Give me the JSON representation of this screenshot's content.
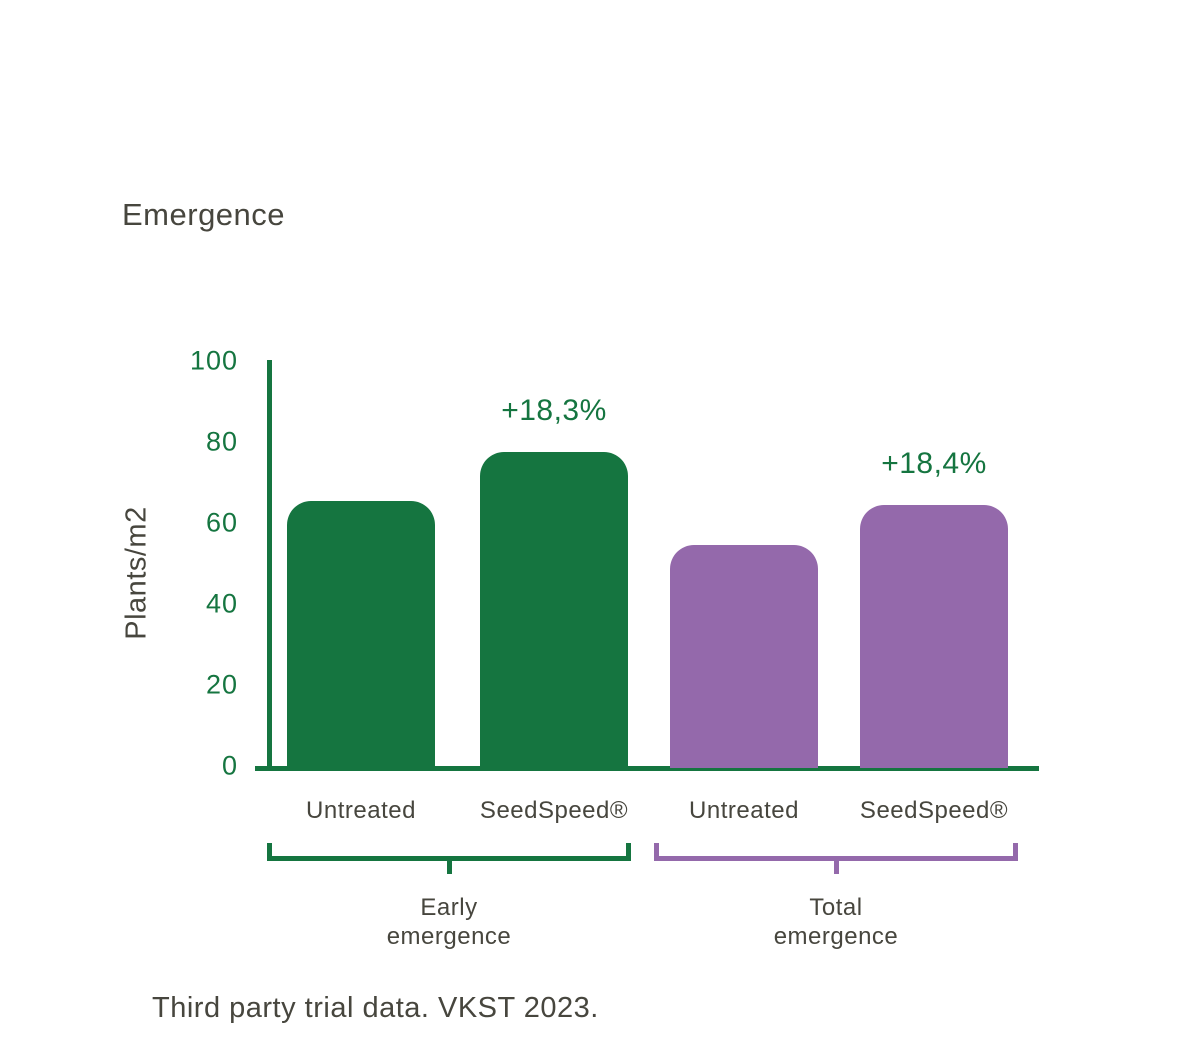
{
  "chart_data": {
    "type": "bar",
    "title": "Emergence",
    "ylabel": "Plants/m2",
    "ylim": [
      0,
      100
    ],
    "yticks": [
      0,
      20,
      40,
      60,
      80,
      100
    ],
    "grid": false,
    "legend": false,
    "categories": [
      "Untreated",
      "SeedSpeed®",
      "Untreated",
      "SeedSpeed®"
    ],
    "values": [
      66,
      78,
      55,
      65
    ],
    "bar_colors": [
      "#157540",
      "#157540",
      "#9469ab",
      "#9469ab"
    ],
    "annotations": [
      {
        "bar_index": 1,
        "text": "+18,3%"
      },
      {
        "bar_index": 3,
        "text": "+18,4%"
      }
    ],
    "groups": [
      {
        "label": "Early\nemergence",
        "bars": [
          0,
          1
        ],
        "color": "#157540"
      },
      {
        "label": "Total\nemergence",
        "bars": [
          2,
          3
        ],
        "color": "#9469ab"
      }
    ],
    "footnote": "Third party trial data. VKST 2023.",
    "colors": {
      "green": "#157540",
      "purple": "#9469ab",
      "text": "#47463e",
      "background": "#ffffff"
    }
  }
}
